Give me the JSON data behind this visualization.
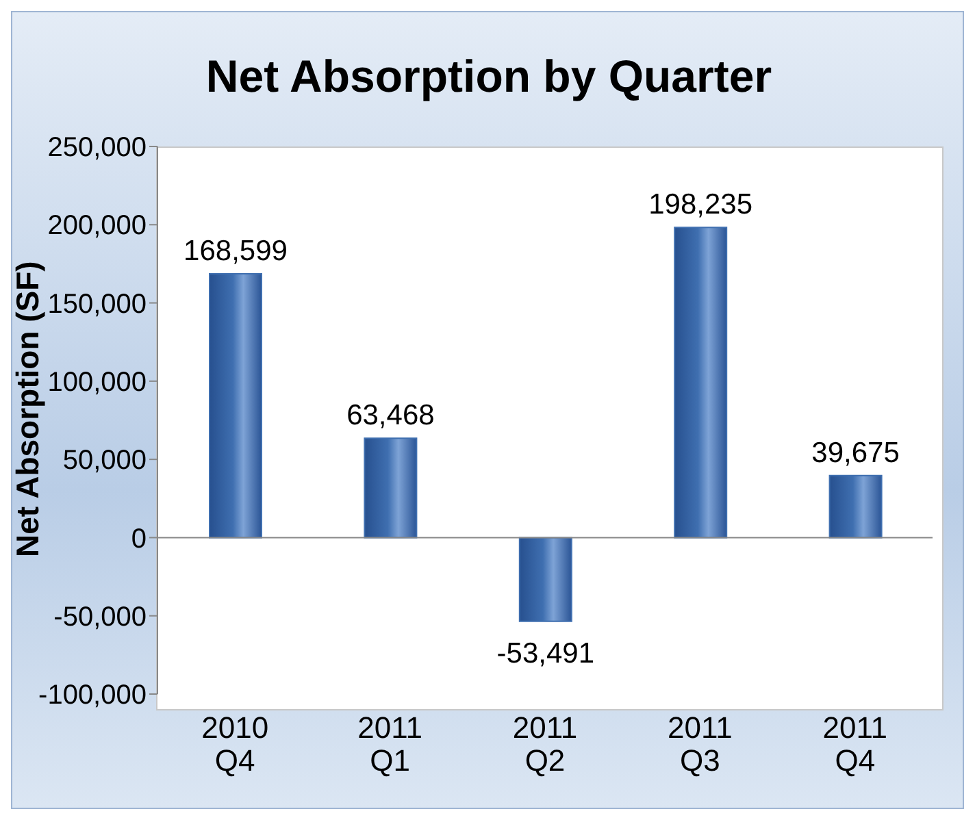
{
  "chart_data": {
    "type": "bar",
    "title": "Net Absorption by Quarter",
    "ylabel": "Net Absorption (SF)",
    "categories": [
      "2010 Q4",
      "2011 Q1",
      "2011 Q2",
      "2011 Q3",
      "2011 Q4"
    ],
    "values": [
      168599,
      63468,
      -53491,
      198235,
      39675
    ],
    "color": "#3f6fb0",
    "ylim": [
      -100000,
      250000
    ],
    "yticks": [
      {
        "value": -100000,
        "label": "-100,000"
      },
      {
        "value": -50000,
        "label": "-50,000"
      },
      {
        "value": 0,
        "label": "0"
      },
      {
        "value": 50000,
        "label": "50,000"
      },
      {
        "value": 100000,
        "label": "100,000"
      },
      {
        "value": 150000,
        "label": "150,000"
      },
      {
        "value": 200000,
        "label": "200,000"
      },
      {
        "value": 250000,
        "label": "250,000"
      }
    ],
    "value_labels": [
      "168,599",
      "63,468",
      "-53,491",
      "198,235",
      "39,675"
    ],
    "legend": false
  }
}
